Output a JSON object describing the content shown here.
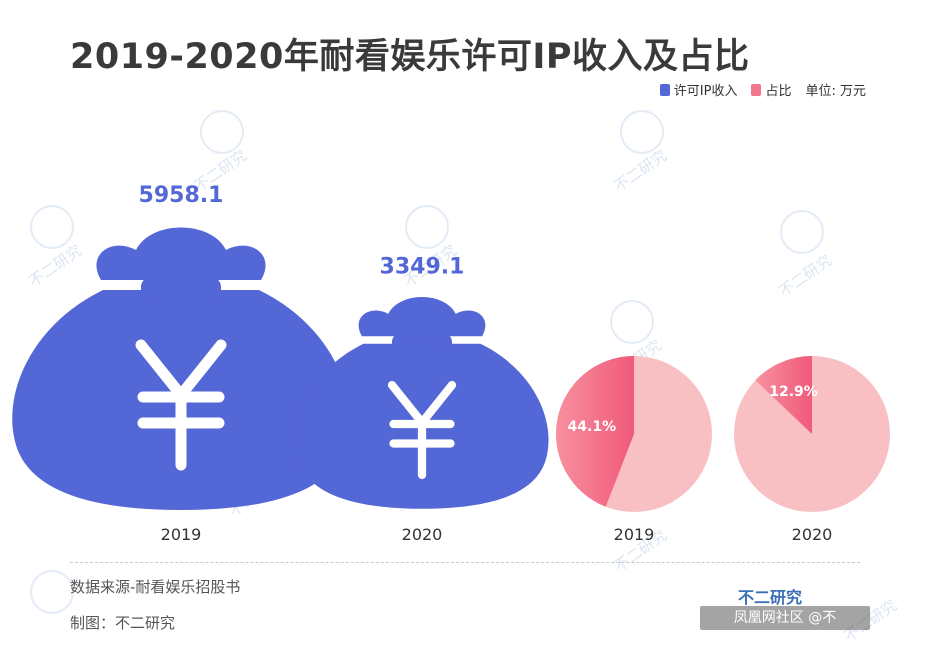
{
  "title": "2019-2020年耐看娱乐许可IP收入及占比",
  "legend": {
    "revenue_label": "许可IP收入",
    "share_label": "占比",
    "unit_label": "单位: 万元"
  },
  "colors": {
    "revenue": "#5467d6",
    "share_dark": "#f2768e",
    "share_light": "#f8c0c2"
  },
  "chart_data": {
    "type": "bar",
    "categories": [
      "2019",
      "2020"
    ],
    "series": [
      {
        "name": "许可IP收入",
        "values": [
          5958.1,
          3349.1
        ],
        "value_labels": [
          "5958.1",
          "3349.1"
        ]
      },
      {
        "name": "占比",
        "values": [
          44.1,
          12.9
        ],
        "value_labels": [
          "44.1%",
          "12.9%"
        ]
      }
    ],
    "unit": "单位: 万元"
  },
  "footer": {
    "source": "数据来源-耐看娱乐招股书",
    "author": "制图：不二研究",
    "brand": "不二研究",
    "badge": "凤凰网社区 @不"
  },
  "watermark_text": "不二研究"
}
